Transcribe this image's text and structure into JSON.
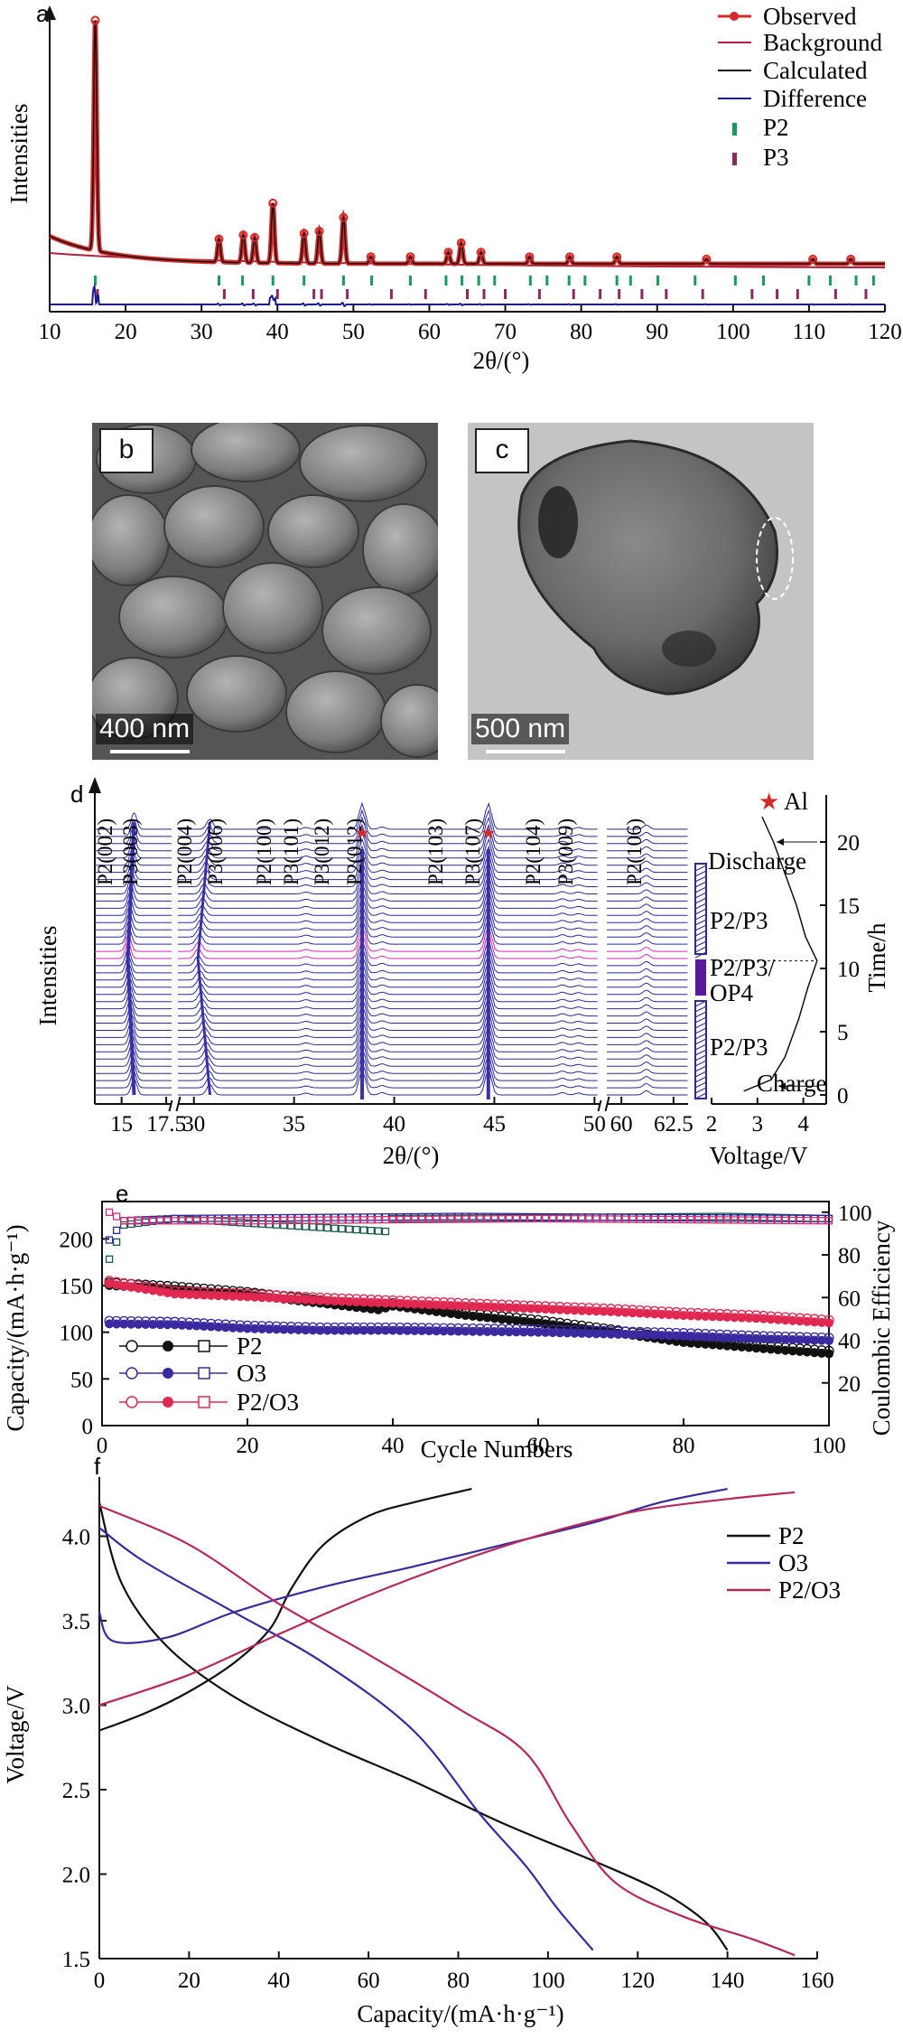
{
  "panels": {
    "a": {
      "letter": "a",
      "ylabel": "Intensities",
      "xlabel": "2θ/(°)",
      "legend": [
        "Observed",
        "Background",
        "Calculated",
        "Difference",
        "P2",
        "P3"
      ],
      "colors": {
        "observed": "#d42a2a",
        "background": "#b02040",
        "calculated": "#111111",
        "difference": "#1a1a8c",
        "p2": "#1a9a5a",
        "p3": "#8a2a5a"
      }
    },
    "b": {
      "letter": "b",
      "scale": "400 nm"
    },
    "c": {
      "letter": "c",
      "scale": "500 nm"
    },
    "d": {
      "letter": "d",
      "ylabel": "Intensities",
      "xlabel": "2θ/(°)",
      "legend_al": "Al",
      "peak_labels": [
        "P2(002)",
        "P3(003)",
        "P2(004)",
        "P3(006)",
        "P2(100)",
        "P3(101)",
        "P3(012)",
        "P2(012)",
        "P2(103)",
        "P3(107)",
        "P2(104)",
        "P3(009)",
        "P2(106)"
      ],
      "stage_labels": [
        "Discharge",
        "P2/P3",
        "P2/P3/",
        "OP4",
        "P2/P3",
        "Charge"
      ],
      "right_xlabel": "Voltage/V",
      "right_ylabel": "Time/h"
    },
    "e": {
      "letter": "e",
      "ylabel_left": "Capacity/(mA·h·g⁻¹)",
      "ylabel_right": "Coulombic Efficiency",
      "xlabel": "Cycle Numbers",
      "legend": [
        "P2",
        "O3",
        "P2/O3"
      ]
    },
    "f": {
      "letter": "f",
      "ylabel": "Voltage/V",
      "xlabel": "Capacity/(mA·h·g⁻¹)",
      "legend": [
        "P2",
        "O3",
        "P2/O3"
      ]
    }
  },
  "chart_data": [
    {
      "type": "line",
      "panel": "a",
      "xlabel": "2θ/(°)",
      "ylabel": "Intensities",
      "xlim": [
        10,
        120
      ],
      "xticks": [
        10,
        20,
        30,
        40,
        50,
        60,
        70,
        80,
        90,
        100,
        110,
        120
      ],
      "peaks_observed": [
        {
          "x": 16.0,
          "y": 100
        },
        {
          "x": 32.3,
          "y": 10
        },
        {
          "x": 35.5,
          "y": 12
        },
        {
          "x": 37.0,
          "y": 11
        },
        {
          "x": 39.4,
          "y": 26
        },
        {
          "x": 43.5,
          "y": 13
        },
        {
          "x": 45.5,
          "y": 14
        },
        {
          "x": 48.7,
          "y": 20
        },
        {
          "x": 52.3,
          "y": 3
        },
        {
          "x": 57.5,
          "y": 3
        },
        {
          "x": 62.5,
          "y": 5
        },
        {
          "x": 64.2,
          "y": 9
        },
        {
          "x": 66.8,
          "y": 5
        },
        {
          "x": 73.2,
          "y": 3
        },
        {
          "x": 78.5,
          "y": 3
        },
        {
          "x": 84.7,
          "y": 3
        },
        {
          "x": 96.5,
          "y": 2
        },
        {
          "x": 110.5,
          "y": 2
        },
        {
          "x": 115.5,
          "y": 2
        }
      ],
      "p2_ticks": [
        16.0,
        32.3,
        35.4,
        39.4,
        43.5,
        48.7,
        52.4,
        57.5,
        62.2,
        64.3,
        66.5,
        68.6,
        73.3,
        75.5,
        78.4,
        80.5,
        84.7,
        86.5,
        90.1,
        95.0,
        100.3,
        104.0,
        110.0,
        112.8,
        116.2,
        118.5
      ],
      "p3_ticks": [
        16.3,
        33.0,
        36.8,
        40.0,
        44.8,
        45.8,
        49.2,
        55.0,
        59.5,
        65.0,
        67.2,
        70.0,
        74.5,
        79.0,
        82.5,
        85.0,
        88.0,
        91.2,
        96.0,
        102.5,
        105.8,
        108.5,
        113.5,
        117.5
      ]
    },
    {
      "type": "line",
      "panel": "d",
      "xlabel": "2θ/(°)",
      "ylabel": "Intensities",
      "xbreaks": [
        [
          14,
          17.5
        ],
        [
          29,
          50
        ],
        [
          59,
          63
        ]
      ],
      "xtick_labels": [
        "15",
        "17.5",
        "30",
        "35",
        "40",
        "45",
        "50",
        "60",
        "62.5"
      ],
      "al_peaks": [
        38.4,
        44.7
      ],
      "time_voltage": {
        "xlabel": "Voltage/V",
        "ylabel": "Time/h",
        "xlim": [
          2,
          4.5
        ],
        "ylim": [
          0,
          23
        ],
        "xticks": [
          2,
          3,
          4
        ],
        "yticks": [
          0,
          5,
          10,
          15,
          20
        ],
        "points": [
          [
            2.7,
            0.3
          ],
          [
            3.3,
            1.2
          ],
          [
            3.6,
            3
          ],
          [
            3.9,
            6
          ],
          [
            4.1,
            8.5
          ],
          [
            4.3,
            10.6
          ],
          [
            4.05,
            12.5
          ],
          [
            3.85,
            15
          ],
          [
            3.6,
            17.5
          ],
          [
            3.35,
            20
          ],
          [
            3.1,
            22
          ]
        ]
      }
    },
    {
      "type": "scatter",
      "panel": "e",
      "xlabel": "Cycle Numbers",
      "ylabel": "Capacity/(mA·h·g⁻¹)",
      "ylabel_right": "Coulombic Efficiency",
      "xlim": [
        0,
        100
      ],
      "ylim": [
        0,
        240
      ],
      "ylim_right": [
        0,
        105
      ],
      "xticks": [
        0,
        20,
        40,
        60,
        80,
        100
      ],
      "yticks": [
        0,
        50,
        100,
        150,
        200
      ],
      "yticks_right": [
        20,
        40,
        60,
        80,
        100
      ],
      "series": [
        {
          "name": "P2",
          "color": "#111111",
          "capacity": [
            [
              1,
              150
            ],
            [
              10,
              146
            ],
            [
              20,
              140
            ],
            [
              30,
              131
            ],
            [
              38,
              124
            ],
            [
              40,
              128
            ],
            [
              50,
              118
            ],
            [
              60,
              110
            ],
            [
              70,
              100
            ],
            [
              80,
              89
            ],
            [
              90,
              83
            ],
            [
              100,
              77
            ]
          ],
          "efficiency": [
            [
              1,
              78
            ],
            [
              3,
              94
            ],
            [
              10,
              97
            ],
            [
              39,
              91
            ],
            [
              40,
              97
            ],
            [
              86,
              98
            ],
            [
              100,
              97
            ]
          ]
        },
        {
          "name": "O3",
          "color": "#3a2aa0",
          "capacity": [
            [
              1,
              109
            ],
            [
              10,
              108
            ],
            [
              20,
              104
            ],
            [
              30,
              102
            ],
            [
              40,
              102
            ],
            [
              50,
              101
            ],
            [
              60,
              100
            ],
            [
              70,
              98
            ],
            [
              80,
              96
            ],
            [
              90,
              93
            ],
            [
              100,
              91
            ]
          ],
          "efficiency": [
            [
              1,
              87
            ],
            [
              3,
              96
            ],
            [
              10,
              97
            ],
            [
              50,
              98
            ],
            [
              100,
              97
            ]
          ]
        },
        {
          "name": "P2/O3",
          "color": "#e02850",
          "capacity": [
            [
              1,
              152
            ],
            [
              10,
              141
            ],
            [
              20,
              138
            ],
            [
              30,
              134
            ],
            [
              40,
              131
            ],
            [
              50,
              128
            ],
            [
              60,
              125
            ],
            [
              70,
              122
            ],
            [
              80,
              118
            ],
            [
              90,
              115
            ],
            [
              100,
              110
            ]
          ],
          "efficiency": [
            [
              1,
              100
            ],
            [
              3,
              96
            ],
            [
              20,
              96
            ],
            [
              60,
              97
            ],
            [
              100,
              96
            ]
          ]
        }
      ]
    },
    {
      "type": "line",
      "panel": "f",
      "xlabel": "Capacity/(mA·h·g⁻¹)",
      "ylabel": "Voltage/V",
      "xlim": [
        0,
        160
      ],
      "ylim": [
        1.5,
        4.35
      ],
      "xticks": [
        0,
        20,
        40,
        60,
        80,
        100,
        120,
        140,
        160
      ],
      "yticks": [
        1.5,
        2.0,
        2.5,
        3.0,
        3.5,
        4.0
      ],
      "series": [
        {
          "name": "P2",
          "color": "#111111",
          "charge": [
            [
              0,
              2.85
            ],
            [
              10,
              2.95
            ],
            [
              20,
              3.08
            ],
            [
              30,
              3.25
            ],
            [
              38,
              3.45
            ],
            [
              43,
              3.7
            ],
            [
              50,
              3.95
            ],
            [
              60,
              4.12
            ],
            [
              70,
              4.2
            ],
            [
              83,
              4.28
            ]
          ],
          "discharge": [
            [
              0,
              4.2
            ],
            [
              5,
              3.72
            ],
            [
              15,
              3.35
            ],
            [
              30,
              3.05
            ],
            [
              50,
              2.78
            ],
            [
              70,
              2.55
            ],
            [
              90,
              2.3
            ],
            [
              110,
              2.08
            ],
            [
              125,
              1.9
            ],
            [
              135,
              1.72
            ],
            [
              140,
              1.55
            ]
          ]
        },
        {
          "name": "O3",
          "color": "#3a2aa0",
          "charge": [
            [
              0,
              3.55
            ],
            [
              3,
              3.38
            ],
            [
              15,
              3.4
            ],
            [
              30,
              3.55
            ],
            [
              50,
              3.7
            ],
            [
              70,
              3.82
            ],
            [
              90,
              3.95
            ],
            [
              110,
              4.08
            ],
            [
              125,
              4.2
            ],
            [
              140,
              4.28
            ]
          ],
          "discharge": [
            [
              0,
              4.05
            ],
            [
              10,
              3.85
            ],
            [
              30,
              3.55
            ],
            [
              50,
              3.25
            ],
            [
              70,
              2.85
            ],
            [
              85,
              2.35
            ],
            [
              95,
              2.05
            ],
            [
              102,
              1.8
            ],
            [
              110,
              1.55
            ]
          ]
        },
        {
          "name": "P2/O3",
          "color": "#b8285a",
          "charge": [
            [
              0,
              3.0
            ],
            [
              20,
              3.18
            ],
            [
              40,
              3.42
            ],
            [
              60,
              3.65
            ],
            [
              80,
              3.85
            ],
            [
              100,
              4.02
            ],
            [
              120,
              4.15
            ],
            [
              140,
              4.22
            ],
            [
              155,
              4.26
            ]
          ],
          "discharge": [
            [
              0,
              4.18
            ],
            [
              20,
              3.95
            ],
            [
              40,
              3.6
            ],
            [
              60,
              3.3
            ],
            [
              80,
              2.98
            ],
            [
              95,
              2.72
            ],
            [
              105,
              2.3
            ],
            [
              115,
              1.95
            ],
            [
              130,
              1.75
            ],
            [
              145,
              1.62
            ],
            [
              155,
              1.52
            ]
          ]
        }
      ]
    }
  ]
}
